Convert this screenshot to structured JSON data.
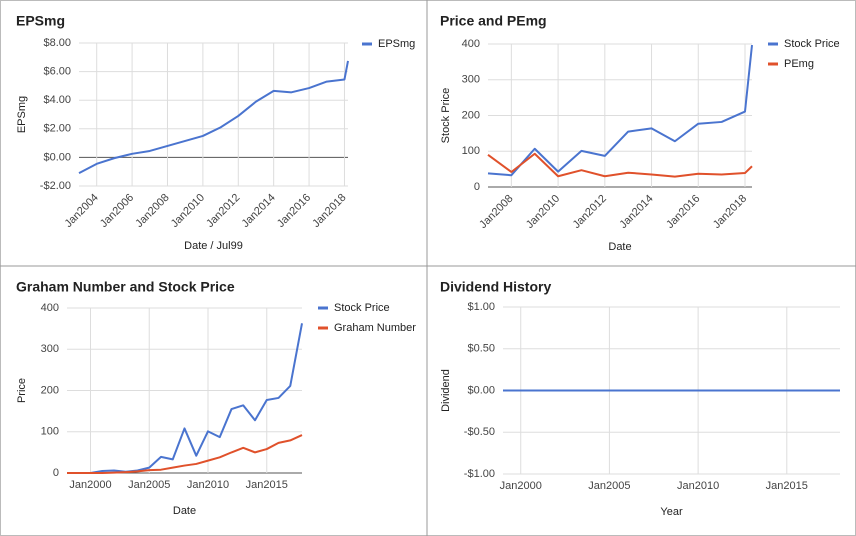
{
  "chart_data": [
    {
      "type": "line",
      "title": "EPSmg",
      "x_label": "Date / Jul99",
      "y_label": "EPSmg",
      "x": [
        2003,
        2004,
        2005,
        2006,
        2007,
        2008,
        2009,
        2010,
        2011,
        2012,
        2013,
        2014,
        2015,
        2016,
        2017,
        2018,
        2018.2
      ],
      "series": [
        {
          "name": "EPSmg",
          "color": "#4a74cf",
          "values": [
            -1.1,
            -0.45,
            -0.05,
            0.25,
            0.45,
            0.8,
            1.15,
            1.5,
            2.1,
            2.9,
            3.9,
            4.65,
            4.55,
            4.85,
            5.3,
            5.45,
            6.75
          ]
        }
      ],
      "xlim": [
        2003,
        2018.2
      ],
      "ylim": [
        -2,
        8
      ],
      "xticks": [
        {
          "value": 2004,
          "label": "Jan2004"
        },
        {
          "value": 2006,
          "label": "Jan2006"
        },
        {
          "value": 2008,
          "label": "Jan2008"
        },
        {
          "value": 2010,
          "label": "Jan2010"
        },
        {
          "value": 2012,
          "label": "Jan2012"
        },
        {
          "value": 2014,
          "label": "Jan2014"
        },
        {
          "value": 2016,
          "label": "Jan2016"
        },
        {
          "value": 2018,
          "label": "Jan2018"
        }
      ],
      "yticks": [
        {
          "value": -2,
          "label": "-$2.00"
        },
        {
          "value": 0,
          "label": "$0.00"
        },
        {
          "value": 2,
          "label": "$2.00"
        },
        {
          "value": 4,
          "label": "$4.00"
        },
        {
          "value": 6,
          "label": "$6.00"
        },
        {
          "value": 8,
          "label": "$8.00"
        }
      ],
      "grid": true,
      "legend": "right"
    },
    {
      "type": "line",
      "title": "Price and PEmg",
      "x_label": "Date",
      "y_label": "Stock Price",
      "x": [
        2007,
        2008,
        2009,
        2010,
        2011,
        2012,
        2013,
        2014,
        2015,
        2016,
        2017,
        2018,
        2018.3
      ],
      "series": [
        {
          "name": "Stock Price",
          "color": "#4a74cf",
          "values": [
            38,
            33,
            107,
            43,
            101,
            87,
            155,
            164,
            128,
            177,
            182,
            211,
            397
          ]
        },
        {
          "name": "PEmg",
          "color": "#e0512b",
          "values": [
            90,
            42,
            93,
            30,
            47,
            30,
            40,
            35,
            29,
            37,
            35,
            39,
            58
          ]
        }
      ],
      "xlim": [
        2007,
        2018.3
      ],
      "ylim": [
        0,
        400
      ],
      "xticks": [
        {
          "value": 2008,
          "label": "Jan2008"
        },
        {
          "value": 2010,
          "label": "Jan2010"
        },
        {
          "value": 2012,
          "label": "Jan2012"
        },
        {
          "value": 2014,
          "label": "Jan2014"
        },
        {
          "value": 2016,
          "label": "Jan2016"
        },
        {
          "value": 2018,
          "label": "Jan2018"
        }
      ],
      "yticks": [
        0,
        100,
        200,
        300,
        400
      ],
      "grid": true,
      "legend": "right"
    },
    {
      "type": "line",
      "title": "Graham Number and Stock Price",
      "x_label": "Date",
      "y_label": "Price",
      "x": [
        1998,
        1999,
        2000,
        2001,
        2002,
        2003,
        2004,
        2005,
        2006,
        2007,
        2008,
        2009,
        2010,
        2011,
        2012,
        2013,
        2014,
        2015,
        2016,
        2017,
        2018
      ],
      "series": [
        {
          "name": "Stock Price",
          "color": "#4a74cf",
          "values": [
            0,
            0,
            0,
            5,
            6,
            3,
            6,
            13,
            39,
            33,
            108,
            42,
            101,
            87,
            155,
            164,
            128,
            177,
            182,
            211,
            363
          ]
        },
        {
          "name": "Graham Number",
          "color": "#e0512b",
          "values": [
            0,
            0,
            0,
            0,
            1,
            2,
            4,
            7,
            8,
            13,
            18,
            22,
            30,
            38,
            50,
            61,
            50,
            58,
            73,
            79,
            92
          ]
        }
      ],
      "xlim": [
        1998,
        2018
      ],
      "ylim": [
        0,
        400
      ],
      "xticks": [
        {
          "value": 2000,
          "label": "Jan2000"
        },
        {
          "value": 2005,
          "label": "Jan2005"
        },
        {
          "value": 2010,
          "label": "Jan2010"
        },
        {
          "value": 2015,
          "label": "Jan2015"
        }
      ],
      "yticks": [
        0,
        100,
        200,
        300,
        400
      ],
      "grid": true,
      "legend": "right"
    },
    {
      "type": "line",
      "title": "Dividend History",
      "x_label": "Year",
      "y_label": "Dividend",
      "x": [
        1999,
        2018
      ],
      "series": [
        {
          "color": "#4a74cf",
          "values": [
            0,
            0
          ]
        }
      ],
      "xlim": [
        1999,
        2018
      ],
      "ylim": [
        -1,
        1
      ],
      "xticks": [
        {
          "value": 2000,
          "label": "Jan2000"
        },
        {
          "value": 2005,
          "label": "Jan2005"
        },
        {
          "value": 2010,
          "label": "Jan2010"
        },
        {
          "value": 2015,
          "label": "Jan2015"
        }
      ],
      "yticks": [
        {
          "value": -1,
          "label": "-$1.00"
        },
        {
          "value": -0.5,
          "label": "-$0.50"
        },
        {
          "value": 0,
          "label": "$0.00"
        },
        {
          "value": 0.5,
          "label": "$0.50"
        },
        {
          "value": 1,
          "label": "$1.00"
        }
      ],
      "grid": true
    }
  ]
}
